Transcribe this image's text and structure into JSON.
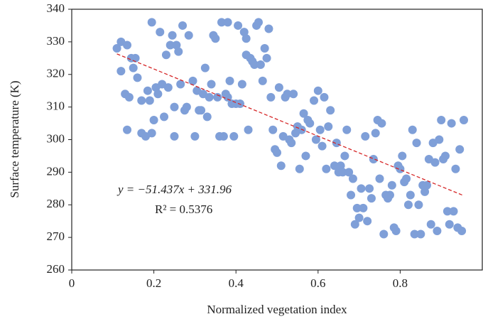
{
  "chart_data": {
    "type": "scatter",
    "x_label": "Normalized vegetation index",
    "y_label": "Surface temperature (K)",
    "equation": "y = −51.437x + 331.96",
    "r_squared": "R² = 0.5376",
    "color": "#7f9fd8",
    "trendline_color": "#d62728",
    "xlim": [
      0,
      1
    ],
    "xticks": [
      0,
      0.2,
      0.4,
      0.6,
      0.8
    ],
    "ylim": [
      260,
      340
    ],
    "yticks": [
      260,
      270,
      280,
      290,
      300,
      310,
      320,
      330,
      340
    ],
    "trendline": {
      "x": [
        0.11,
        0.955
      ],
      "y": [
        326.3,
        282.8
      ]
    },
    "x": [
      0.11,
      0.12,
      0.12,
      0.13,
      0.135,
      0.135,
      0.14,
      0.145,
      0.15,
      0.155,
      0.16,
      0.17,
      0.17,
      0.18,
      0.185,
      0.19,
      0.195,
      0.195,
      0.2,
      0.205,
      0.21,
      0.215,
      0.22,
      0.225,
      0.23,
      0.235,
      0.24,
      0.245,
      0.25,
      0.25,
      0.255,
      0.26,
      0.265,
      0.27,
      0.275,
      0.28,
      0.285,
      0.295,
      0.3,
      0.305,
      0.31,
      0.315,
      0.32,
      0.325,
      0.33,
      0.335,
      0.34,
      0.345,
      0.35,
      0.355,
      0.36,
      0.365,
      0.37,
      0.375,
      0.38,
      0.38,
      0.385,
      0.39,
      0.395,
      0.4,
      0.405,
      0.41,
      0.415,
      0.42,
      0.425,
      0.425,
      0.43,
      0.435,
      0.44,
      0.445,
      0.45,
      0.455,
      0.46,
      0.465,
      0.47,
      0.475,
      0.48,
      0.485,
      0.49,
      0.495,
      0.5,
      0.505,
      0.51,
      0.515,
      0.52,
      0.525,
      0.53,
      0.535,
      0.54,
      0.545,
      0.55,
      0.555,
      0.56,
      0.565,
      0.57,
      0.575,
      0.58,
      0.59,
      0.595,
      0.6,
      0.605,
      0.61,
      0.615,
      0.62,
      0.625,
      0.63,
      0.64,
      0.645,
      0.65,
      0.655,
      0.66,
      0.665,
      0.67,
      0.675,
      0.68,
      0.685,
      0.69,
      0.695,
      0.7,
      0.705,
      0.71,
      0.715,
      0.72,
      0.725,
      0.73,
      0.735,
      0.74,
      0.745,
      0.75,
      0.755,
      0.76,
      0.765,
      0.77,
      0.775,
      0.78,
      0.785,
      0.79,
      0.795,
      0.8,
      0.805,
      0.81,
      0.815,
      0.82,
      0.825,
      0.83,
      0.835,
      0.84,
      0.845,
      0.85,
      0.855,
      0.86,
      0.865,
      0.87,
      0.875,
      0.88,
      0.885,
      0.89,
      0.895,
      0.9,
      0.905,
      0.91,
      0.915,
      0.92,
      0.925,
      0.93,
      0.935,
      0.94,
      0.945,
      0.95,
      0.955
    ],
    "values": [
      328,
      321,
      330,
      314,
      303,
      329,
      313,
      325,
      322,
      325,
      319,
      312,
      302,
      301,
      315,
      312,
      302,
      336,
      306,
      316,
      314,
      333,
      317,
      307,
      326,
      316,
      329,
      332,
      310,
      301,
      329,
      327,
      317,
      335,
      309,
      310,
      332,
      318,
      301,
      315,
      309,
      309,
      314,
      322,
      307,
      313,
      317,
      332,
      331,
      313,
      301,
      336,
      301,
      314,
      336,
      313,
      318,
      311,
      301,
      311,
      335,
      311,
      317,
      333,
      331,
      326,
      303,
      325,
      324,
      323,
      335,
      336,
      323,
      318,
      328,
      325,
      334,
      313,
      303,
      297,
      296,
      316,
      292,
      301,
      313,
      314,
      300,
      299,
      314,
      302,
      304,
      291,
      303,
      308,
      295,
      306,
      305,
      312,
      300,
      315,
      303,
      298,
      313,
      291,
      304,
      309,
      292,
      299,
      290,
      292,
      290,
      295,
      303,
      290,
      283,
      288,
      274,
      279,
      276,
      285,
      279,
      301,
      275,
      285,
      282,
      294,
      302,
      306,
      288,
      305,
      271,
      283,
      282,
      283,
      286,
      273,
      272,
      292,
      291,
      295,
      287,
      288,
      280,
      283,
      303,
      271,
      299,
      280,
      271,
      286,
      284,
      286,
      294,
      274,
      299,
      293,
      272,
      300,
      306,
      294,
      295,
      278,
      274,
      305,
      278,
      291,
      273,
      297,
      272,
      306
    ]
  }
}
